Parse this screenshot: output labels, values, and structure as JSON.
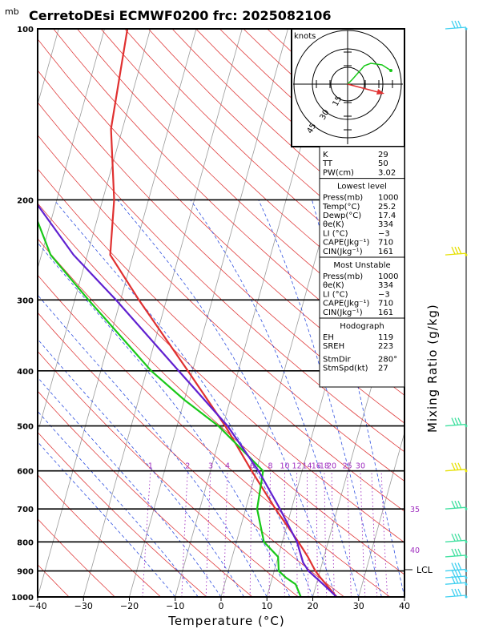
{
  "title": "CerretoDEsi ECMWF0200  frc: 2025082106",
  "pressure_unit": "mb",
  "x_label": "Temperature (°C)",
  "y2_label": "Mixing Ratio (g/kg)",
  "hodograph": {
    "unit_label": "knots",
    "rings": [
      "15",
      "30",
      "45"
    ]
  },
  "index_table": {
    "top": [
      {
        "label": "K",
        "value": "29"
      },
      {
        "label": "TT",
        "value": "50"
      },
      {
        "label": "PW(cm)",
        "value": "3.02"
      }
    ],
    "lowest_header": "Lowest level",
    "lowest": [
      {
        "label": "Press(mb)",
        "value": "1000"
      },
      {
        "label": "Temp(°C)",
        "value": "25.2"
      },
      {
        "label": "Dewp(°C)",
        "value": "17.4"
      },
      {
        "label": "θe(K)",
        "value": "334"
      },
      {
        "label": "LI (°C)",
        "value": "−3"
      },
      {
        "label": "CAPE(Jkg⁻¹)",
        "value": "710"
      },
      {
        "label": "CIN(Jkg⁻¹)",
        "value": "161"
      }
    ],
    "unstable_header": "Most Unstable",
    "unstable": [
      {
        "label": "Press(mb)",
        "value": "1000"
      },
      {
        "label": "θe(K)",
        "value": "334"
      },
      {
        "label": "LI (°C)",
        "value": "−3"
      },
      {
        "label": "CAPE(Jkg⁻¹)",
        "value": "710"
      },
      {
        "label": "CIN(Jkg⁻¹)",
        "value": "161"
      }
    ],
    "hodo_header": "Hodograph",
    "hodo": [
      {
        "label": "EH",
        "value": "119"
      },
      {
        "label": "SREH",
        "value": "223"
      },
      {
        "label": "StmDir",
        "value": "280°"
      },
      {
        "label": "StmSpd(kt)",
        "value": "27"
      }
    ]
  },
  "lcl_label": "LCL",
  "chart_data": {
    "type": "line",
    "x_ticks": [
      "−40",
      "−30",
      "−20",
      "−10",
      "0",
      "10",
      "20",
      "30",
      "40"
    ],
    "x_range": [
      -40,
      40
    ],
    "p_ticks": [
      "100",
      "200",
      "300",
      "400",
      "500",
      "600",
      "700",
      "800",
      "900",
      "1000"
    ],
    "p_range": [
      100,
      1000
    ],
    "y_scale": "log-pressure",
    "mixing_ratio_labels": [
      "1",
      "2",
      "3",
      "4",
      "6",
      "8",
      "10",
      "12",
      "14",
      "16",
      "18",
      "20",
      "25",
      "30",
      "35",
      "40"
    ],
    "mixing_ratio_values": [
      1,
      2,
      3,
      4,
      6,
      8,
      10,
      12,
      14,
      16,
      18,
      20,
      25,
      30,
      35,
      40
    ],
    "series": [
      {
        "role": "temperature",
        "color": "#e03030",
        "p": [
          1000,
          925,
          900,
          850,
          800,
          700,
          600,
          500,
          400,
          300,
          250,
          200,
          150,
          100
        ],
        "t": [
          25.2,
          20.5,
          19.0,
          16.5,
          13.5,
          6.5,
          -1.0,
          -9.5,
          -21.0,
          -36.0,
          -45.0,
          -47.5,
          -52.5,
          -55.0
        ]
      },
      {
        "role": "dewpoint",
        "color": "#18c818",
        "p": [
          1000,
          950,
          925,
          900,
          850,
          800,
          700,
          600,
          500,
          450,
          400,
          300,
          250,
          200,
          150,
          100
        ],
        "t": [
          17.4,
          15.5,
          13.0,
          11.0,
          10.0,
          6.0,
          2.5,
          1.5,
          -11.0,
          -20.0,
          -29.0,
          -47.0,
          -58.0,
          -66.0,
          -74.0,
          -84.0
        ]
      },
      {
        "role": "parcel",
        "color": "#6020d0",
        "p": [
          1000,
          950,
          900,
          870,
          800,
          700,
          600,
          500,
          400,
          300,
          250,
          200,
          150,
          100
        ],
        "t": [
          25.2,
          21.5,
          17.5,
          15.8,
          13.2,
          7.5,
          0.5,
          -9.0,
          -23.0,
          -41.0,
          -53.0,
          -65.0,
          -82.0,
          -105.0
        ]
      }
    ],
    "wind_barbs": [
      {
        "p": 100,
        "color": "#40d0f0"
      },
      {
        "p": 250,
        "color": "#e6e000"
      },
      {
        "p": 500,
        "color": "#40e0a0"
      },
      {
        "p": 600,
        "color": "#e6e000"
      },
      {
        "p": 700,
        "color": "#40e0a0"
      },
      {
        "p": 800,
        "color": "#40e0a0"
      },
      {
        "p": 850,
        "color": "#40e0a0"
      },
      {
        "p": 900,
        "color": "#40d0f0"
      },
      {
        "p": 925,
        "color": "#40d0f0"
      },
      {
        "p": 950,
        "color": "#40d0f0"
      },
      {
        "p": 1000,
        "color": "#40d0f0"
      }
    ],
    "lcl_p": 900
  }
}
